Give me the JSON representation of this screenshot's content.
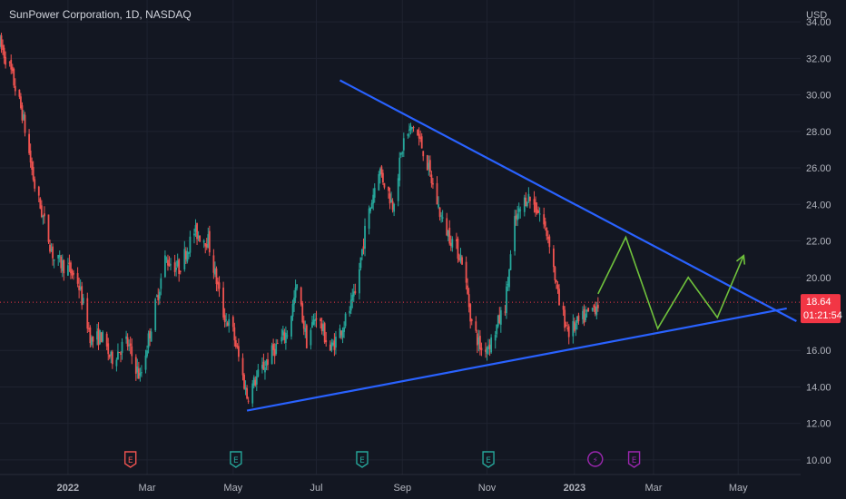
{
  "title": "SunPower Corporation, 1D, NASDAQ",
  "currency": "USD",
  "colors": {
    "background": "#131722",
    "grid": "#1f2330",
    "up": "#26a69a",
    "down": "#ef5350",
    "trendline": "#2962ff",
    "projection": "#6fc13c",
    "price_tag": "#f23645",
    "earnings_badge_up": "#26a69a",
    "earnings_badge_down": "#ef5350",
    "dividend_badge": "#9c27b0"
  },
  "price_tag": {
    "price": "18.64",
    "countdown": "01:21:54"
  },
  "event_markers": [
    {
      "label": "E",
      "date": "2022-02-17",
      "kind": "earnings",
      "color": "down"
    },
    {
      "label": "E",
      "date": "2022-05-04",
      "kind": "earnings",
      "color": "up"
    },
    {
      "label": "E",
      "date": "2022-08-03",
      "kind": "earnings",
      "color": "up"
    },
    {
      "label": "E",
      "date": "2022-11-02",
      "kind": "earnings",
      "color": "up"
    },
    {
      "label": "⚡",
      "date": "2023-01-18",
      "kind": "news",
      "color": "dividend"
    },
    {
      "label": "E",
      "date": "2023-02-15",
      "kind": "earnings",
      "color": "dividend"
    }
  ],
  "chart_data": {
    "type": "candlestick",
    "title": "SunPower Corporation, 1D, NASDAQ",
    "x_tick_labels": [
      "2022",
      "Mar",
      "May",
      "Jul",
      "Sep",
      "Nov",
      "2023",
      "Mar",
      "May"
    ],
    "x_tick_dates": [
      "2022-01-03",
      "2022-03-01",
      "2022-05-02",
      "2022-07-01",
      "2022-09-01",
      "2022-11-01",
      "2023-01-03",
      "2023-03-01",
      "2023-05-01"
    ],
    "y_tick_labels": [
      "10.00",
      "12.00",
      "14.00",
      "16.00",
      "18.00",
      "20.00",
      "22.00",
      "24.00",
      "26.00",
      "28.00",
      "30.00",
      "32.00",
      "34.00"
    ],
    "ylim": [
      9.2,
      35.2
    ],
    "xlim": [
      "2021-11-15",
      "2023-06-15"
    ],
    "grid": true,
    "price_path": [
      [
        "2021-11-15",
        32.8
      ],
      [
        "2021-11-22",
        31.5
      ],
      [
        "2021-12-01",
        29.0
      ],
      [
        "2021-12-10",
        25.0
      ],
      [
        "2021-12-17",
        23.0
      ],
      [
        "2021-12-24",
        21.0
      ],
      [
        "2022-01-03",
        20.5
      ],
      [
        "2022-01-10",
        19.8
      ],
      [
        "2022-01-20",
        16.5
      ],
      [
        "2022-01-27",
        16.8
      ],
      [
        "2022-02-03",
        15.5
      ],
      [
        "2022-02-14",
        16.5
      ],
      [
        "2022-02-24",
        14.5
      ],
      [
        "2022-03-03",
        17.0
      ],
      [
        "2022-03-14",
        21.0
      ],
      [
        "2022-03-24",
        20.5
      ],
      [
        "2022-04-04",
        22.5
      ],
      [
        "2022-04-14",
        22.0
      ],
      [
        "2022-04-25",
        18.0
      ],
      [
        "2022-05-02",
        17.0
      ],
      [
        "2022-05-12",
        13.5
      ],
      [
        "2022-05-19",
        14.5
      ],
      [
        "2022-05-31",
        16.0
      ],
      [
        "2022-06-10",
        17.0
      ],
      [
        "2022-06-17",
        19.5
      ],
      [
        "2022-06-24",
        16.5
      ],
      [
        "2022-07-01",
        18.0
      ],
      [
        "2022-07-11",
        16.0
      ],
      [
        "2022-07-21",
        17.5
      ],
      [
        "2022-07-29",
        19.0
      ],
      [
        "2022-08-05",
        22.5
      ],
      [
        "2022-08-15",
        26.0
      ],
      [
        "2022-08-25",
        24.0
      ],
      [
        "2022-09-02",
        27.5
      ],
      [
        "2022-09-09",
        28.3
      ],
      [
        "2022-09-16",
        27.0
      ],
      [
        "2022-09-23",
        25.0
      ],
      [
        "2022-09-30",
        23.0
      ],
      [
        "2022-10-07",
        22.0
      ],
      [
        "2022-10-14",
        21.0
      ],
      [
        "2022-10-21",
        17.5
      ],
      [
        "2022-10-28",
        16.0
      ],
      [
        "2022-11-04",
        16.5
      ],
      [
        "2022-11-14",
        18.5
      ],
      [
        "2022-11-21",
        23.0
      ],
      [
        "2022-11-30",
        24.5
      ],
      [
        "2022-12-09",
        23.5
      ],
      [
        "2022-12-16",
        22.0
      ],
      [
        "2022-12-23",
        18.5
      ],
      [
        "2022-12-30",
        17.0
      ],
      [
        "2023-01-06",
        17.5
      ],
      [
        "2023-01-13",
        18.0
      ],
      [
        "2023-01-20",
        18.6
      ]
    ],
    "trendlines": [
      {
        "name": "upper",
        "from": [
          "2022-07-18",
          30.8
        ],
        "to": [
          "2023-06-12",
          17.6
        ]
      },
      {
        "name": "lower",
        "from": [
          "2022-05-12",
          12.7
        ],
        "to": [
          "2023-06-05",
          18.3
        ]
      }
    ],
    "projection_path": [
      [
        "2023-01-20",
        19.1
      ],
      [
        "2023-02-09",
        22.2
      ],
      [
        "2023-03-04",
        17.2
      ],
      [
        "2023-03-26",
        20.0
      ],
      [
        "2023-04-16",
        17.8
      ],
      [
        "2023-05-05",
        21.2
      ]
    ],
    "current_price": 18.64
  }
}
